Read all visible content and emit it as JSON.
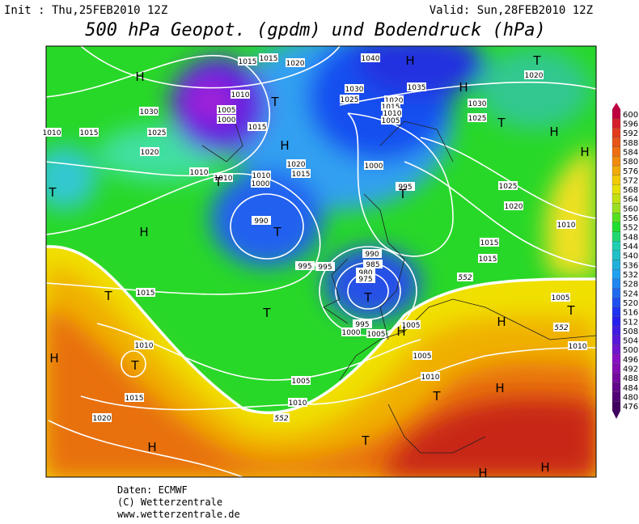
{
  "header": {
    "init": "Init : Thu,25FEB2010 12Z",
    "valid": "Valid: Sun,28FEB2010 12Z",
    "title": "500 hPa Geopot. (gpdm) und Bodendruck (hPa)"
  },
  "map": {
    "pressure_labels": [
      "1015",
      "1015",
      "1020",
      "1040",
      "1030",
      "1010",
      "1005",
      "1000",
      "1015",
      "1030",
      "1025",
      "1020",
      "1015",
      "1010",
      "1005",
      "1035",
      "1030",
      "1025",
      "1020",
      "1015",
      "1025",
      "1020",
      "1010",
      "1010",
      "1010",
      "1000",
      "1020",
      "1015",
      "1000",
      "995",
      "1025",
      "1020",
      "1010",
      "1015",
      "1015",
      "990",
      "995",
      "995",
      "990",
      "985",
      "980",
      "975",
      "1005",
      "995",
      "1000",
      "1005",
      "1005",
      "1015",
      "1010",
      "1005",
      "1010",
      "1010",
      "1005",
      "1015",
      "1020",
      "1010",
      "1010"
    ],
    "contour_labels": [
      "552",
      "552",
      "552"
    ],
    "centers": [
      "H",
      "H",
      "H",
      "T",
      "T",
      "T",
      "H",
      "H",
      "H",
      "T",
      "T",
      "T",
      "H",
      "T",
      "T",
      "T",
      "T",
      "H",
      "T",
      "H",
      "H",
      "T",
      "T",
      "H",
      "H",
      "H",
      "T",
      "H"
    ]
  },
  "colorbar": {
    "levels": [
      476,
      480,
      484,
      488,
      492,
      496,
      500,
      504,
      508,
      512,
      516,
      520,
      524,
      528,
      532,
      536,
      540,
      544,
      548,
      552,
      556,
      560,
      564,
      568,
      572,
      576,
      580,
      584,
      588,
      592,
      596,
      600
    ]
  },
  "footer": {
    "lines": [
      "Daten: ECMWF",
      "(C) Wetterzentrale",
      "www.wetterzentrale.de"
    ]
  }
}
